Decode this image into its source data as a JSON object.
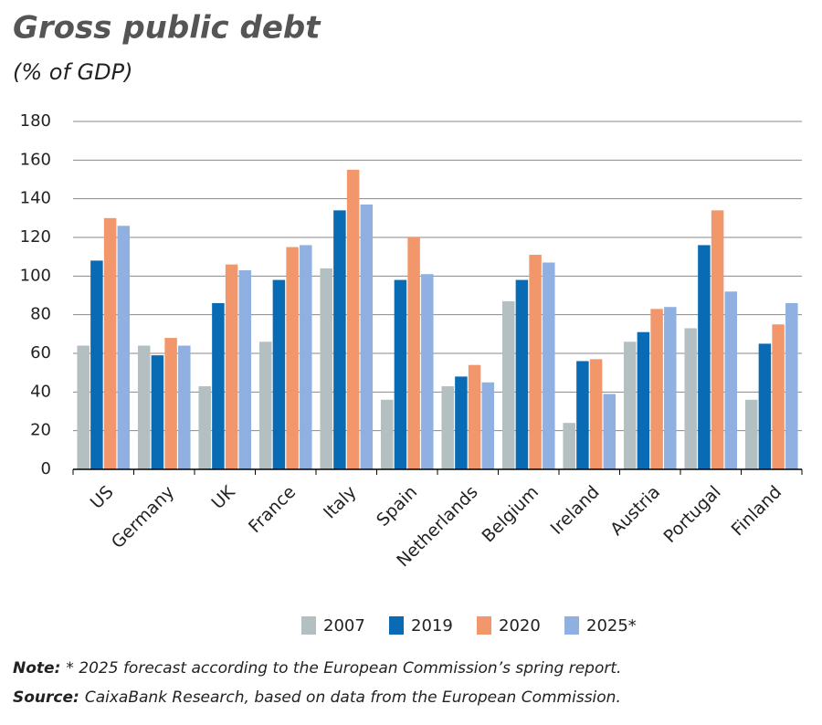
{
  "chart_data": {
    "type": "bar",
    "title": "Gross public debt",
    "subtitle": "(% of GDP)",
    "categories": [
      "US",
      "Germany",
      "UK",
      "France",
      "Italy",
      "Spain",
      "Netherlands",
      "Belgium",
      "Ireland",
      "Austria",
      "Portugal",
      "Finland"
    ],
    "series": [
      {
        "name": "2007",
        "color": "#b3bfc0",
        "values": [
          64,
          64,
          43,
          66,
          104,
          36,
          43,
          87,
          24,
          66,
          73,
          36
        ]
      },
      {
        "name": "2019",
        "color": "#0a6bb5",
        "values": [
          108,
          59,
          86,
          98,
          134,
          98,
          48,
          98,
          56,
          71,
          116,
          65
        ]
      },
      {
        "name": "2020",
        "color": "#f2976b",
        "values": [
          130,
          68,
          106,
          115,
          155,
          120,
          54,
          111,
          57,
          83,
          134,
          75
        ]
      },
      {
        "name": "2025*",
        "color": "#8fb0e0",
        "values": [
          126,
          64,
          103,
          116,
          137,
          101,
          45,
          107,
          39,
          84,
          92,
          86
        ]
      }
    ],
    "ylim": [
      0,
      180
    ],
    "yticks": [
      0,
      20,
      40,
      60,
      80,
      100,
      120,
      140,
      160,
      180
    ],
    "grid": true,
    "note_label": "Note:",
    "note": "* 2025 forecast according to the European Commission’s spring report.",
    "source_label": "Source:",
    "source": "CaixaBank Research, based on data from the European Commission."
  }
}
